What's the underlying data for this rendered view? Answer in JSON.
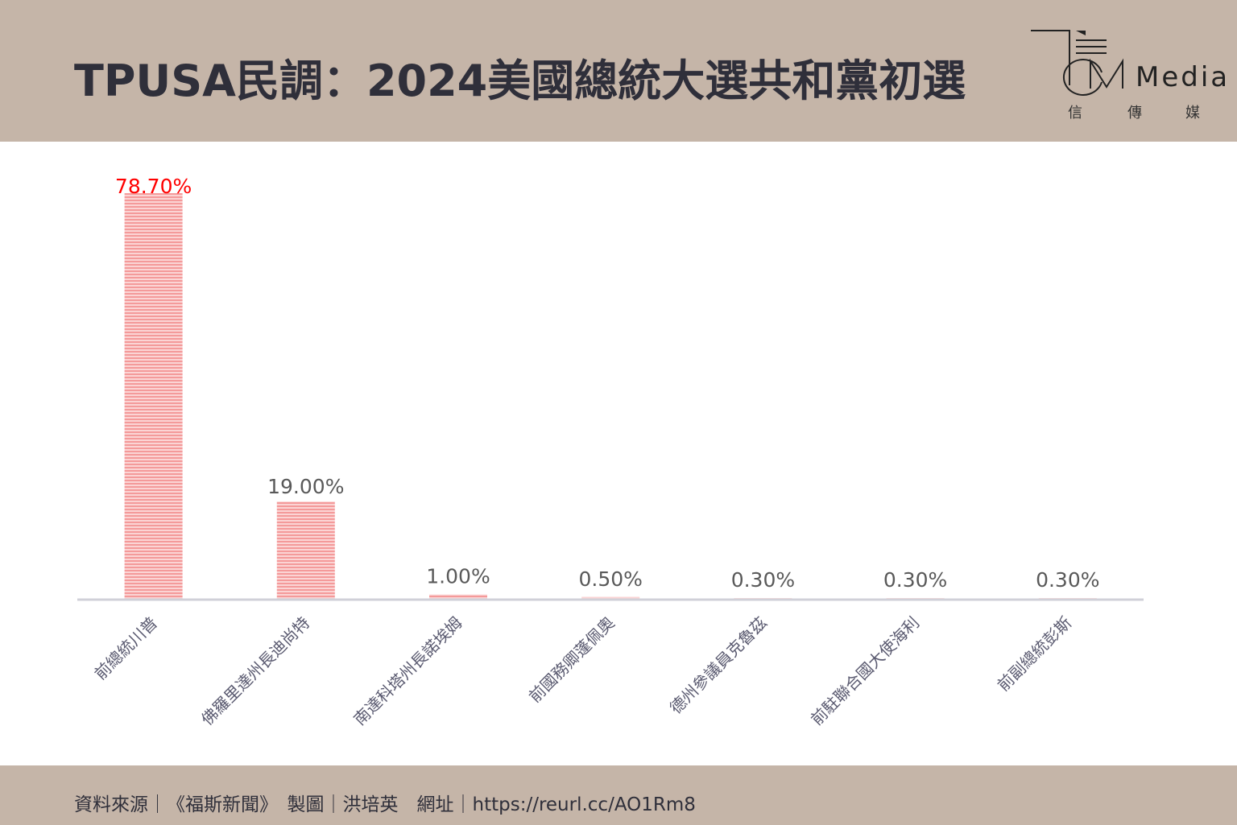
{
  "header": {
    "title": "TPUSA民調：2024美國總統大選共和黨初選",
    "logo_text": "Media",
    "logo_sub": [
      "信",
      "傳",
      "媒"
    ]
  },
  "footer": {
    "text": "資料來源｜《福斯新聞》　製圖｜洪培英　網址｜https://reurl.cc/AO1Rm8"
  },
  "colors": {
    "bar": "#f4a0a0",
    "highlight_label": "#ff0000",
    "label": "#595959",
    "axis": "#d0d0d8",
    "band": "#c5b5a8"
  },
  "chart_data": {
    "type": "bar",
    "title": "TPUSA民調：2024美國總統大選共和黨初選",
    "categories": [
      "前總統川普",
      "佛羅里達州長迪尚特",
      "南達科塔州長諾埃姆",
      "前國務卿蓬佩奧",
      "德州參議員克魯茲",
      "前駐聯合國大使海利",
      "前副總統彭斯"
    ],
    "values": [
      78.7,
      19.0,
      1.0,
      0.5,
      0.3,
      0.3,
      0.3
    ],
    "data_labels": [
      "78.70%",
      "19.00%",
      "1.00%",
      "0.50%",
      "0.30%",
      "0.30%",
      "0.30%"
    ],
    "ylim": [
      0,
      80
    ],
    "grid": false,
    "y_axis_shown": false,
    "xlabel": "",
    "ylabel": ""
  }
}
